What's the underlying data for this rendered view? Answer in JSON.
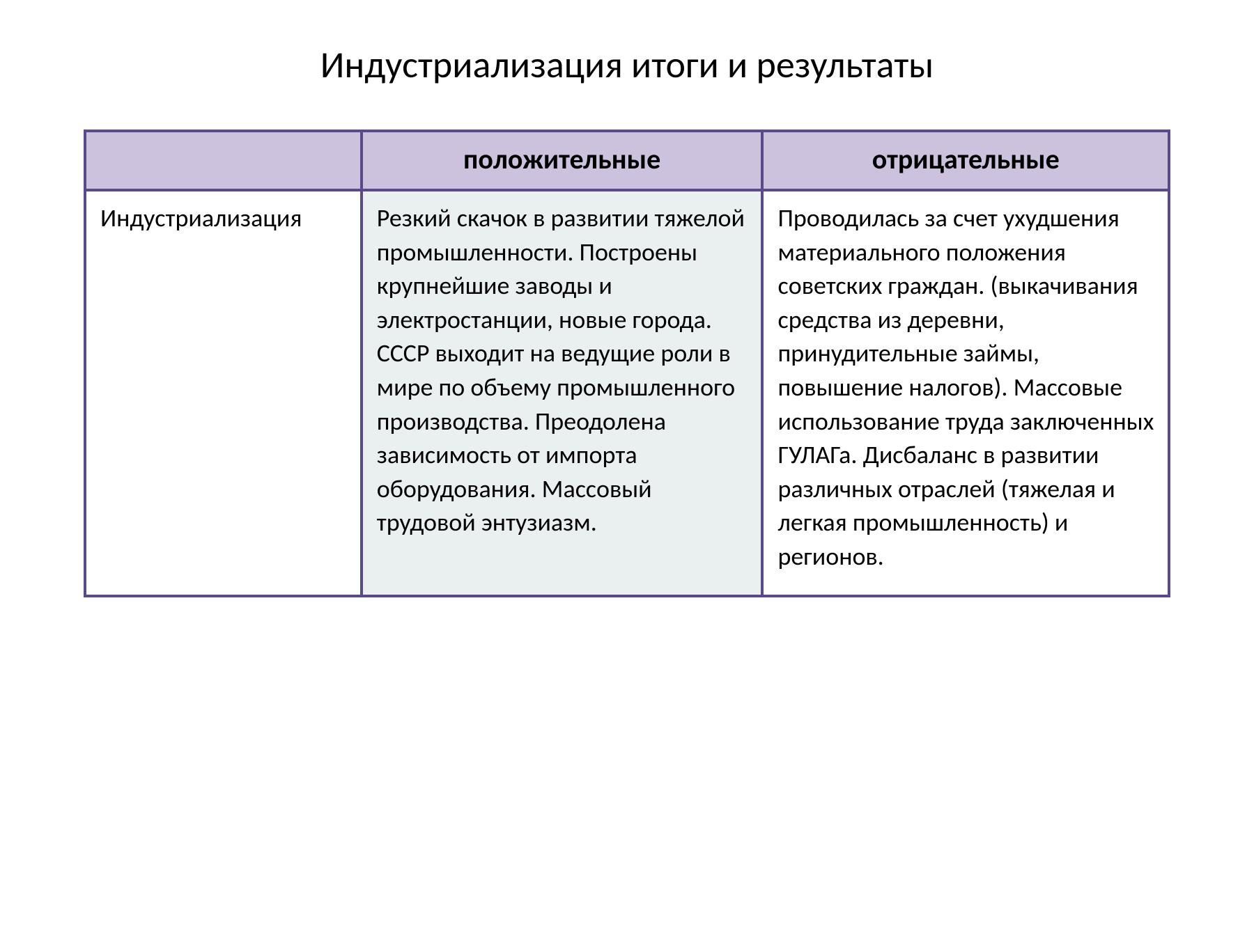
{
  "title": "Индустриализация итоги и результаты",
  "table": {
    "border_color": "#5b4a8a",
    "header_bg": "#ccc2de",
    "cell1_bg": "#ffffff",
    "cell2_bg": "#eaeff0",
    "cell3_bg": "#ffffff",
    "header_font_size": 40,
    "body_font_size": 36,
    "title_font_size": 54,
    "col_widths": [
      "25.5%",
      "37%",
      "37.5%"
    ],
    "columns": [
      "",
      "положительные",
      "отрицательные"
    ],
    "rows": [
      {
        "label": "Индустриализация",
        "positive": "Резкий скачок в развитии тяжелой промышленности. Построены крупнейшие заводы и электростанции, новые города. СССР выходит на ведущие роли в мире по объему промышленного производства. Преодолена зависимость от импорта оборудования. Массовый трудовой  энтузиазм.",
        "negative": "Проводилась за счет ухудшения материального положения советских граждан. (выкачивания средства из деревни, принудительные займы, повышение налогов). Массовые использование труда заключенных ГУЛАГа. Дисбаланс  в развитии различных  отраслей (тяжелая и легкая промышленность) и регионов."
      }
    ]
  }
}
